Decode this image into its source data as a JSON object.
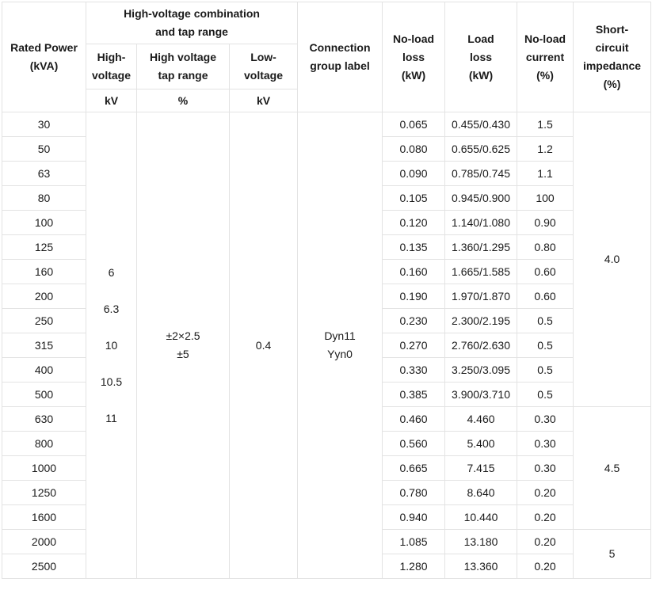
{
  "header": {
    "rated_power": [
      "Rated Power",
      "(kVA)"
    ],
    "hv_group": [
      "High-voltage combination",
      "and tap range"
    ],
    "hv": [
      "High-",
      "voltage"
    ],
    "hv_tap": [
      "High voltage",
      "tap range"
    ],
    "lv": [
      "Low-",
      "voltage"
    ],
    "unit_kv": "kV",
    "unit_pct": "%",
    "unit_kv2": "kV",
    "connection": [
      "Connection",
      "group label"
    ],
    "noload_loss": [
      "No-load",
      "loss",
      "(kW)"
    ],
    "load_loss": [
      "Load",
      "loss",
      "(kW)"
    ],
    "noload_current": [
      "No-load",
      "current",
      "(%)"
    ],
    "sc_impedance": [
      "Short-",
      "circuit",
      "impedance",
      "(%)"
    ]
  },
  "merged": {
    "hv_values": [
      "6",
      "6.3",
      "10",
      "10.5",
      "11"
    ],
    "tap_range": [
      "±2×2.5",
      "±5"
    ],
    "lv_value": "0.4",
    "connection": [
      "Dyn11",
      "Yyn0"
    ],
    "impedance": [
      "4.0",
      "4.5",
      "5"
    ]
  },
  "rows": [
    {
      "power": "30",
      "noload": "0.065",
      "load": "0.455/0.430",
      "current": "1.5"
    },
    {
      "power": "50",
      "noload": "0.080",
      "load": "0.655/0.625",
      "current": "1.2"
    },
    {
      "power": "63",
      "noload": "0.090",
      "load": "0.785/0.745",
      "current": "1.1"
    },
    {
      "power": "80",
      "noload": "0.105",
      "load": "0.945/0.900",
      "current": "100"
    },
    {
      "power": "100",
      "noload": "0.120",
      "load": "1.140/1.080",
      "current": "0.90"
    },
    {
      "power": "125",
      "noload": "0.135",
      "load": "1.360/1.295",
      "current": "0.80"
    },
    {
      "power": "160",
      "noload": "0.160",
      "load": "1.665/1.585",
      "current": "0.60"
    },
    {
      "power": "200",
      "noload": "0.190",
      "load": "1.970/1.870",
      "current": "0.60"
    },
    {
      "power": "250",
      "noload": "0.230",
      "load": "2.300/2.195",
      "current": "0.5"
    },
    {
      "power": "315",
      "noload": "0.270",
      "load": "2.760/2.630",
      "current": "0.5"
    },
    {
      "power": "400",
      "noload": "0.330",
      "load": "3.250/3.095",
      "current": "0.5"
    },
    {
      "power": "500",
      "noload": "0.385",
      "load": "3.900/3.710",
      "current": "0.5"
    },
    {
      "power": "630",
      "noload": "0.460",
      "load": "4.460",
      "current": "0.30"
    },
    {
      "power": "800",
      "noload": "0.560",
      "load": "5.400",
      "current": "0.30"
    },
    {
      "power": "1000",
      "noload": "0.665",
      "load": "7.415",
      "current": "0.30"
    },
    {
      "power": "1250",
      "noload": "0.780",
      "load": "8.640",
      "current": "0.20"
    },
    {
      "power": "1600",
      "noload": "0.940",
      "load": "10.440",
      "current": "0.20"
    },
    {
      "power": "2000",
      "noload": "1.085",
      "load": "13.180",
      "current": "0.20"
    },
    {
      "power": "2500",
      "noload": "1.280",
      "load": "13.360",
      "current": "0.20"
    }
  ]
}
